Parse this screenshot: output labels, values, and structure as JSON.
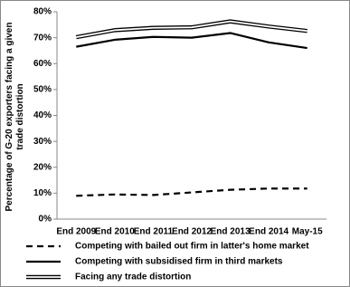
{
  "chart_data": {
    "type": "line",
    "ylabel": "Percentage of G-20 exporters facing a given trade distortion",
    "categories": [
      "End 2009",
      "End 2010",
      "End 2011",
      "End 2012",
      "End 2013",
      "End 2014",
      "May-15"
    ],
    "series": [
      {
        "name": "Competing with bailed out firm in latter's home market",
        "color": "#000000",
        "style": "dashed",
        "values": [
          9.0,
          9.5,
          9.3,
          10.3,
          11.3,
          11.8,
          11.8
        ]
      },
      {
        "name": "Competing with subsidised firm in third markets",
        "color": "#000000",
        "style": "solid",
        "values": [
          66.5,
          69.2,
          70.3,
          70.0,
          71.8,
          68.2,
          66.0
        ]
      },
      {
        "name": "Facing any trade distortion",
        "color": "#000000",
        "style": "double",
        "values": [
          70.2,
          72.9,
          73.8,
          74.0,
          76.3,
          74.3,
          72.6
        ]
      }
    ],
    "ylim": [
      0,
      80
    ],
    "yticks": [
      {
        "value": 0,
        "label": "0%"
      },
      {
        "value": 10,
        "label": "10%"
      },
      {
        "value": 20,
        "label": "20%"
      },
      {
        "value": 30,
        "label": "30%"
      },
      {
        "value": 40,
        "label": "40%"
      },
      {
        "value": 50,
        "label": "50%"
      },
      {
        "value": 60,
        "label": "60%"
      },
      {
        "value": 70,
        "label": "70%"
      },
      {
        "value": 80,
        "label": "80%"
      }
    ],
    "grid": false
  }
}
